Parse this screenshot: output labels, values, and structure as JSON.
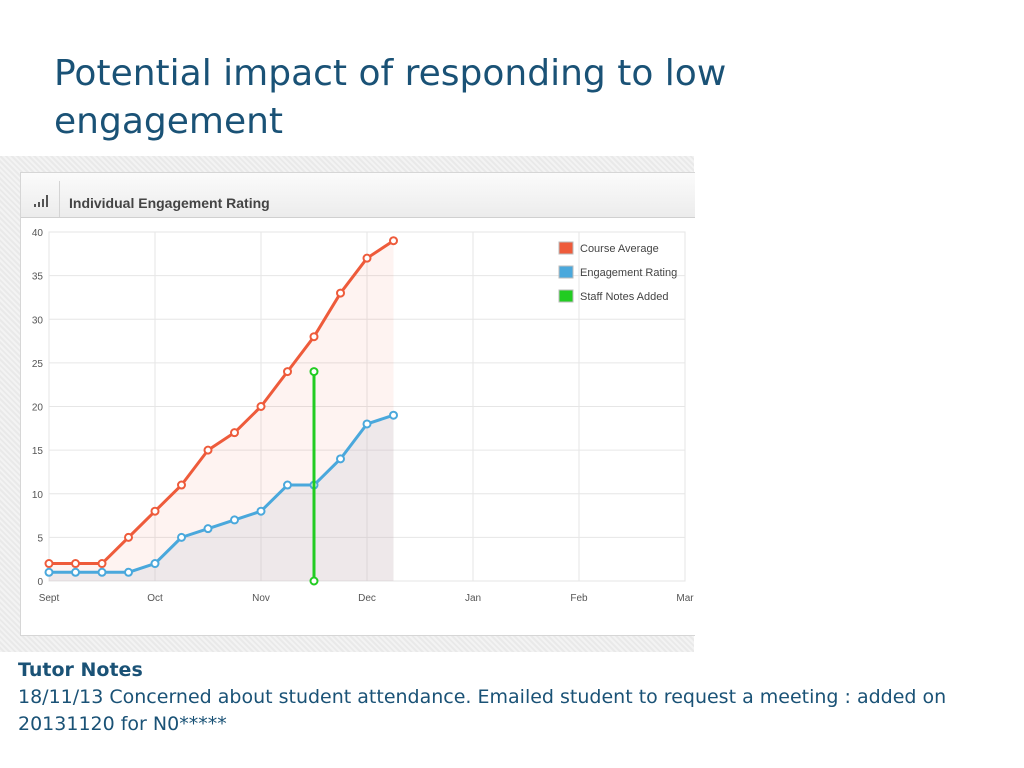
{
  "slide": {
    "title": "Potential impact of responding to low engagement"
  },
  "card": {
    "title": "Individual Engagement Rating",
    "icon": "signal-bars-icon"
  },
  "colors": {
    "title": "#1a5276",
    "course_average": "#ee5b3b",
    "engagement_rating": "#4aa8dc",
    "staff_notes": "#22cc22"
  },
  "chart_data": {
    "type": "line",
    "title": "Individual Engagement Rating",
    "xlabel": "",
    "ylabel": "",
    "x_tick_labels": [
      "Sept",
      "Oct",
      "Nov",
      "Dec",
      "Jan",
      "Feb",
      "Mar"
    ],
    "y_ticks": [
      0,
      5,
      10,
      15,
      20,
      25,
      30,
      35,
      40
    ],
    "ylim": [
      0,
      40
    ],
    "grid": true,
    "legend_position": "top-right",
    "x": [
      0,
      0.25,
      0.5,
      0.75,
      1,
      1.25,
      1.5,
      1.75,
      2,
      2.25,
      2.5,
      2.75,
      3,
      3.25
    ],
    "series": [
      {
        "name": "Course Average",
        "color": "#ee5b3b",
        "values": [
          2,
          2,
          2,
          5,
          8,
          11,
          15,
          17,
          20,
          24,
          28,
          33,
          37,
          39
        ]
      },
      {
        "name": "Engagement Rating",
        "color": "#4aa8dc",
        "values": [
          1,
          1,
          1,
          1,
          2,
          5,
          6,
          7,
          8,
          11,
          11,
          14,
          18,
          19
        ]
      },
      {
        "name": "Staff Notes Added",
        "color": "#22cc22",
        "x": [
          2.5,
          2.5
        ],
        "values": [
          0,
          24
        ]
      }
    ]
  },
  "notes": {
    "heading": "Tutor Notes",
    "text": "18/11/13 Concerned about student attendance. Emailed student to request a meeting : added on 20131120 for N0*****"
  }
}
